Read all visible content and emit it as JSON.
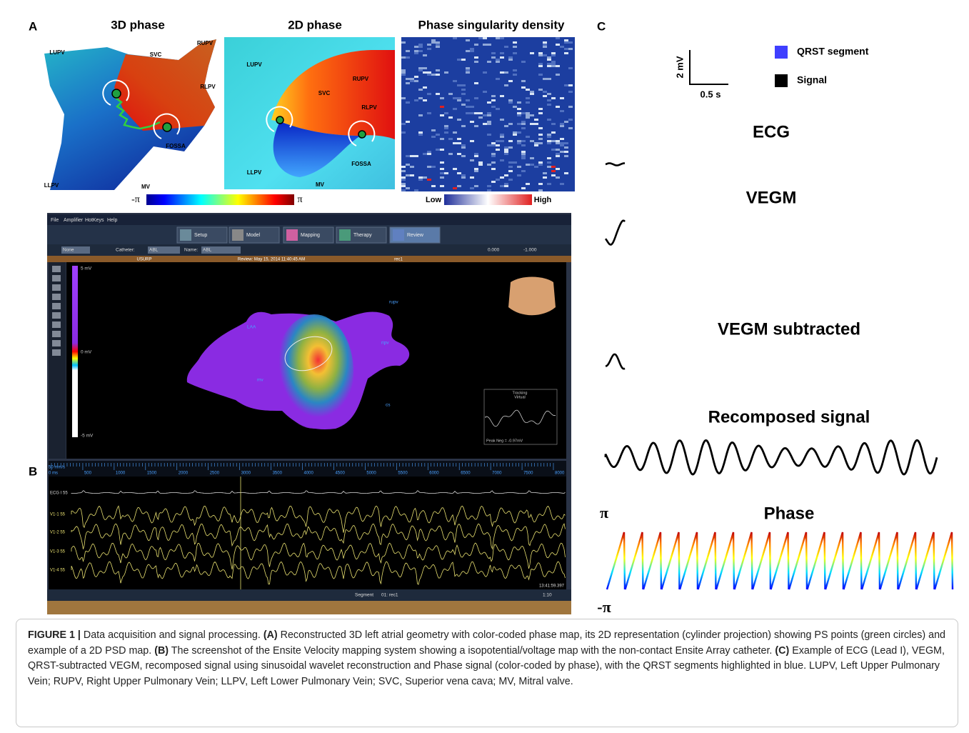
{
  "panel_a": {
    "label": "A",
    "titles": [
      "3D phase",
      "2D phase",
      "Phase singularity density"
    ],
    "map3d_labels": [
      "LUPV",
      "SVC",
      "RUPV",
      "RLPV",
      "FOSSA",
      "LLPV",
      "MV"
    ],
    "map2d_labels": [
      "LUPV",
      "SVC",
      "RUPV",
      "RLPV",
      "FOSSA",
      "LLPV",
      "MV"
    ],
    "phase_scale": [
      "-π",
      "π"
    ],
    "density_scale": [
      "Low",
      "High"
    ]
  },
  "panel_b": {
    "label": "B",
    "menu": [
      "File",
      "Amplifier",
      "HotKeys",
      "Help"
    ],
    "tabs": [
      "Setup",
      "Model",
      "Mapping",
      "Therapy",
      "Review"
    ],
    "toolbar": [
      "None",
      "Catheter:",
      "ABL",
      "Name:",
      "ABL",
      "0.000",
      "-1.000"
    ],
    "status": [
      "USURP",
      "Review: May 15, 2014 11:40:45 AM",
      "rec1"
    ],
    "voltage": [
      "5 mV",
      "0 mV",
      "-5 mV"
    ],
    "anatomy": [
      "LAA",
      "rupv",
      "ripv",
      "mv",
      "cs"
    ],
    "tracking": [
      "Tracking",
      "Virtual",
      "Peak Neg = -0.97mV"
    ],
    "speed": "50 mm/s",
    "time_ticks": [
      "0 ms",
      "500",
      "1000",
      "1500",
      "2000",
      "2500",
      "3000",
      "3500",
      "4000",
      "4500",
      "5000",
      "5500",
      "6000",
      "6500",
      "7000",
      "7500",
      "8000"
    ],
    "channels": [
      "ECG I 55",
      "V1-1 55",
      "V1-2 55",
      "V1-3 55",
      "V1-4 55"
    ],
    "clock": "13:41:59.397",
    "footer": [
      "Segment",
      "01: rec1",
      "1:10"
    ]
  },
  "panel_c": {
    "label": "C",
    "scale": [
      "2 mV",
      "0.5 s"
    ],
    "legend": [
      {
        "name": "QRST segment",
        "color": "#3f3fff"
      },
      {
        "name": "Signal",
        "color": "#000000"
      }
    ],
    "traces": [
      "ECG",
      "VEGM",
      "VEGM subtracted",
      "Recomposed signal",
      "Phase"
    ],
    "phase_axis": [
      "π",
      "-π"
    ]
  },
  "caption": [
    {
      "text": "FIGURE 1 |",
      "bold": true
    },
    {
      "text": " Data acquisition and signal processing. ",
      "bold": false
    },
    {
      "text": "(A)",
      "bold": true
    },
    {
      "text": " Reconstructed 3D left atrial geometry with color-coded phase map, its 2D representation (cylinder projection) showing PS points (green circles) and example of a 2D PSD map. ",
      "bold": false
    },
    {
      "text": "(B)",
      "bold": true
    },
    {
      "text": " The screenshot of the Ensite Velocity mapping system showing a isopotential/voltage map with the non-contact Ensite Array catheter. ",
      "bold": false
    },
    {
      "text": "(C)",
      "bold": true
    },
    {
      "text": " Example of ECG (Lead I), VEGM, QRST-subtracted VEGM, recomposed signal using sinusoidal wavelet reconstruction and Phase signal (color-coded by phase), with the QRST segments highlighted in blue. LUPV, Left Upper Pulmonary Vein; RUPV, Right Upper Pulmonary Vein; LLPV, Left Lower Pulmonary Vein; SVC, Superior vena cava; MV, Mitral valve.",
      "bold": false
    }
  ]
}
